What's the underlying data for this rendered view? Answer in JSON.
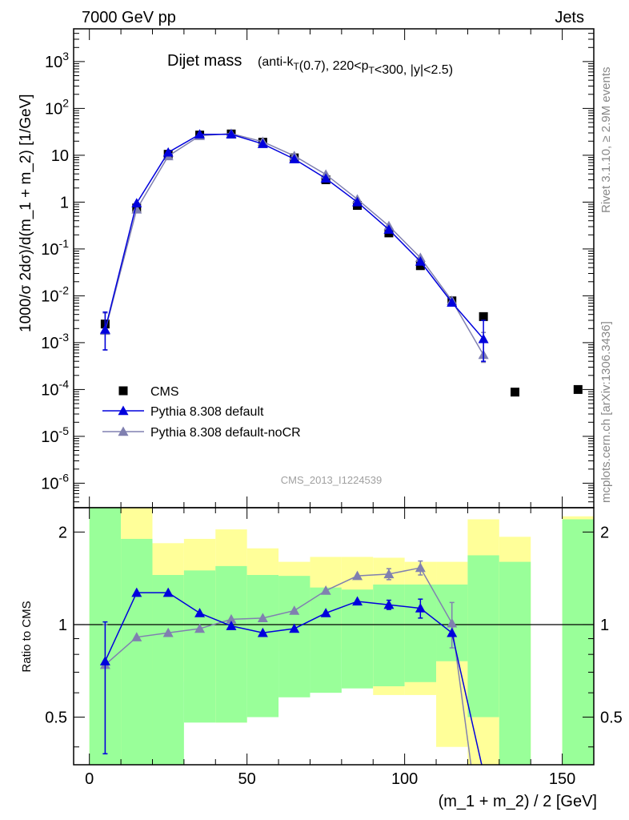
{
  "header": {
    "energy": "7000 GeV pp",
    "category": "Jets"
  },
  "side_labels": {
    "rivet": "Rivet 3.1.10, ≥ 2.9M events",
    "mcplots": "mcplots.cern.ch [arXiv:1306.3436]"
  },
  "watermark": "CMS_2013_I1224539",
  "chart_data": [
    {
      "type": "scatter",
      "title": "Dijet mass",
      "subtitle": "(anti-k_T(0.7), 220<p_T<300, |y|<2.5)",
      "xlabel": "(m_1 + m_2) / 2 [GeV]",
      "ylabel": "1000/σ 2dσ)/d(m_1 + m_2) [1/GeV]",
      "xlim": [
        -5,
        160
      ],
      "ylim": [
        3e-07,
        5000
      ],
      "yscale": "log",
      "ytick_labels": [
        "10^-6",
        "10^-5",
        "10^-4",
        "10^-3",
        "10^-2",
        "10^-1",
        "1",
        "10",
        "10^2",
        "10^3"
      ],
      "legend_position": "bottom-left",
      "series": [
        {
          "name": "CMS",
          "color": "#000000",
          "marker": "square",
          "x": [
            5,
            15,
            25,
            35,
            45,
            55,
            65,
            75,
            85,
            95,
            105,
            115,
            125,
            135,
            155
          ],
          "y": [
            0.0025,
            0.75,
            10.5,
            27,
            28.5,
            19,
            8.8,
            3.0,
            0.85,
            0.22,
            0.044,
            0.0078,
            0.0036,
            8.8e-05,
            0.0001
          ]
        },
        {
          "name": "Pythia 8.308 default",
          "color": "#0000dd",
          "marker": "triangle",
          "x": [
            5,
            15,
            25,
            35,
            45,
            55,
            65,
            75,
            85,
            95,
            105,
            115,
            125
          ],
          "y": [
            0.0019,
            0.95,
            11.5,
            28,
            28,
            17.5,
            8.3,
            3.2,
            1.0,
            0.26,
            0.054,
            0.0072,
            0.0012
          ],
          "yerr_low": [
            0.0012,
            null,
            null,
            null,
            null,
            null,
            null,
            null,
            null,
            null,
            null,
            null,
            0.0008
          ],
          "yerr_high": [
            0.0026,
            null,
            null,
            null,
            null,
            null,
            null,
            null,
            null,
            null,
            null,
            null,
            0.0018
          ]
        },
        {
          "name": "Pythia 8.308 default-noCR",
          "color": "#8080b0",
          "marker": "triangle",
          "x": [
            5,
            15,
            25,
            35,
            45,
            55,
            65,
            75,
            85,
            95,
            105,
            115,
            125
          ],
          "y": [
            0.0018,
            0.7,
            9.6,
            26,
            29,
            19.5,
            9.7,
            3.9,
            1.15,
            0.31,
            0.065,
            0.0079,
            0.00055
          ],
          "yerr_low": [
            0.0011,
            null,
            null,
            null,
            null,
            null,
            null,
            null,
            null,
            null,
            null,
            null,
            0.00017
          ],
          "yerr_high": [
            0.0025,
            null,
            null,
            null,
            null,
            null,
            null,
            null,
            null,
            null,
            null,
            null,
            0.0011
          ]
        }
      ]
    },
    {
      "type": "line",
      "title": "",
      "xlabel": "(m_1 + m_2) / 2 [GeV]",
      "ylabel": "Ratio to CMS",
      "xlim": [
        -5,
        160
      ],
      "ylim": [
        0.35,
        2.4
      ],
      "yscale": "log",
      "yticks": [
        0.5,
        1,
        2
      ],
      "ytick_labels": [
        "0.5",
        "1",
        "2"
      ],
      "xticks": [
        0,
        50,
        100,
        150
      ],
      "xtick_labels": [
        "0",
        "50",
        "100",
        "150"
      ],
      "reference_line": 1,
      "uncertainty_bands": {
        "bins": [
          [
            0,
            10
          ],
          [
            10,
            20
          ],
          [
            20,
            30
          ],
          [
            30,
            40
          ],
          [
            40,
            50
          ],
          [
            50,
            60
          ],
          [
            60,
            70
          ],
          [
            70,
            80
          ],
          [
            80,
            90
          ],
          [
            90,
            100
          ],
          [
            100,
            110
          ],
          [
            110,
            120
          ],
          [
            120,
            130
          ],
          [
            130,
            140
          ],
          [
            150,
            160
          ]
        ],
        "inner": [
          [
            0.2,
            3.0
          ],
          [
            0.2,
            1.9
          ],
          [
            0.2,
            1.45
          ],
          [
            0.48,
            1.5
          ],
          [
            0.48,
            1.55
          ],
          [
            0.5,
            1.45
          ],
          [
            0.58,
            1.44
          ],
          [
            0.6,
            1.32
          ],
          [
            0.62,
            1.3
          ],
          [
            0.63,
            1.35
          ],
          [
            0.65,
            1.35
          ],
          [
            0.76,
            1.35
          ],
          [
            0.5,
            1.68
          ],
          [
            0.2,
            1.6
          ],
          [
            0.2,
            2.2
          ]
        ],
        "outer": [
          [
            0.2,
            3.0
          ],
          [
            0.2,
            3.0
          ],
          [
            0.72,
            1.84
          ],
          [
            0.65,
            1.9
          ],
          [
            0.48,
            2.04
          ],
          [
            0.72,
            1.77
          ],
          [
            0.82,
            1.6
          ],
          [
            0.81,
            1.66
          ],
          [
            0.83,
            1.66
          ],
          [
            0.59,
            1.65
          ],
          [
            0.59,
            1.6
          ],
          [
            0.4,
            1.6
          ],
          [
            0.2,
            2.2
          ],
          [
            0.2,
            1.93
          ],
          [
            0.2,
            2.25
          ]
        ],
        "inner_color": "#99ff99",
        "outer_color": "#ffff99"
      },
      "series": [
        {
          "name": "Pythia 8.308 default",
          "color": "#0000dd",
          "marker": "triangle",
          "x": [
            5,
            15,
            25,
            35,
            45,
            55,
            65,
            75,
            85,
            95,
            105,
            115,
            125
          ],
          "y": [
            0.76,
            1.27,
            1.27,
            1.09,
            0.99,
            0.94,
            0.97,
            1.09,
            1.19,
            1.16,
            1.13,
            0.94,
            0.33
          ],
          "yerr_low": [
            0.38,
            null,
            null,
            null,
            null,
            null,
            null,
            null,
            null,
            0.04,
            0.08,
            null,
            null
          ],
          "yerr_high": [
            0.26,
            null,
            null,
            null,
            null,
            null,
            null,
            null,
            null,
            0.04,
            0.08,
            null,
            null
          ]
        },
        {
          "name": "Pythia 8.308 default-noCR",
          "color": "#8080b0",
          "marker": "triangle",
          "x": [
            5,
            15,
            25,
            35,
            45,
            55,
            65,
            75,
            85,
            95,
            105,
            115,
            125
          ],
          "y": [
            0.74,
            0.91,
            0.94,
            0.97,
            1.04,
            1.05,
            1.11,
            1.29,
            1.44,
            1.46,
            1.53,
            1.01,
            0.16
          ],
          "yerr_low": [
            0.36,
            null,
            null,
            null,
            null,
            null,
            null,
            null,
            null,
            0.06,
            0.08,
            0.17,
            null
          ],
          "yerr_high": [
            0.26,
            null,
            null,
            null,
            null,
            null,
            null,
            null,
            null,
            0.06,
            0.08,
            0.17,
            null
          ]
        }
      ]
    }
  ]
}
